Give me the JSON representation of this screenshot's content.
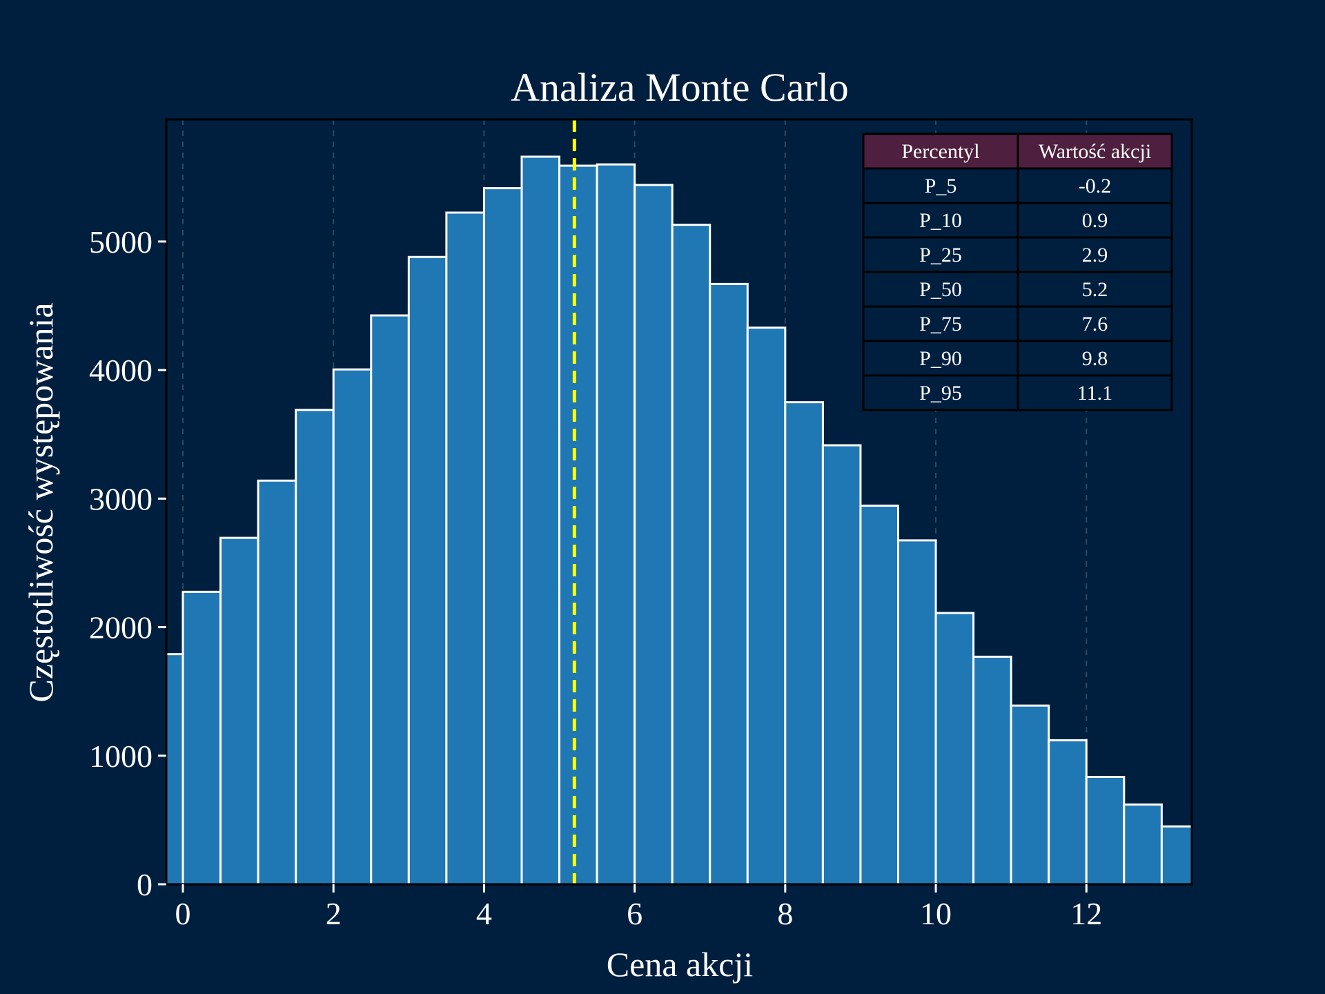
{
  "chart_data": {
    "type": "bar",
    "title": "Analiza Monte Carlo",
    "xlabel": "Cena akcji",
    "ylabel": "Częstotliwość występowania",
    "xlim": [
      -0.22,
      13.4
    ],
    "ylim": [
      0,
      5950
    ],
    "xticks": [
      0,
      2,
      4,
      6,
      8,
      10,
      12
    ],
    "yticks": [
      0,
      1000,
      2000,
      3000,
      4000,
      5000
    ],
    "grid": "vertical dashed",
    "bin_edges": [
      -0.5,
      0.0,
      0.5,
      1.0,
      1.5,
      2.0,
      2.5,
      3.0,
      3.5,
      4.0,
      4.5,
      5.0,
      5.5,
      6.0,
      6.5,
      7.0,
      7.5,
      8.0,
      8.5,
      9.0,
      9.5,
      10.0,
      10.5,
      11.0,
      11.5,
      12.0,
      12.5,
      13.0,
      13.5
    ],
    "values": [
      1790,
      2275,
      2695,
      3140,
      3690,
      4005,
      4425,
      4880,
      5225,
      5415,
      5660,
      5590,
      5600,
      5440,
      5130,
      4670,
      4330,
      3750,
      3415,
      2945,
      2675,
      2110,
      1770,
      1390,
      1120,
      835,
      620,
      450
    ],
    "median_line": {
      "x": 5.2,
      "color": "#ffff00",
      "style": "dashed"
    },
    "colors": {
      "background": "#001f3f",
      "bar": "#1f77b4",
      "bar_edge": "#ffffff",
      "table_header": "#4f1f3f",
      "table_cell": "#001f3f"
    },
    "table": {
      "columns": [
        "Percentyl",
        "Wartość akcji"
      ],
      "rows": [
        [
          "P_5",
          "-0.2"
        ],
        [
          "P_10",
          "0.9"
        ],
        [
          "P_25",
          "2.9"
        ],
        [
          "P_50",
          "5.2"
        ],
        [
          "P_75",
          "7.6"
        ],
        [
          "P_90",
          "9.8"
        ],
        [
          "P_95",
          "11.1"
        ]
      ]
    }
  }
}
